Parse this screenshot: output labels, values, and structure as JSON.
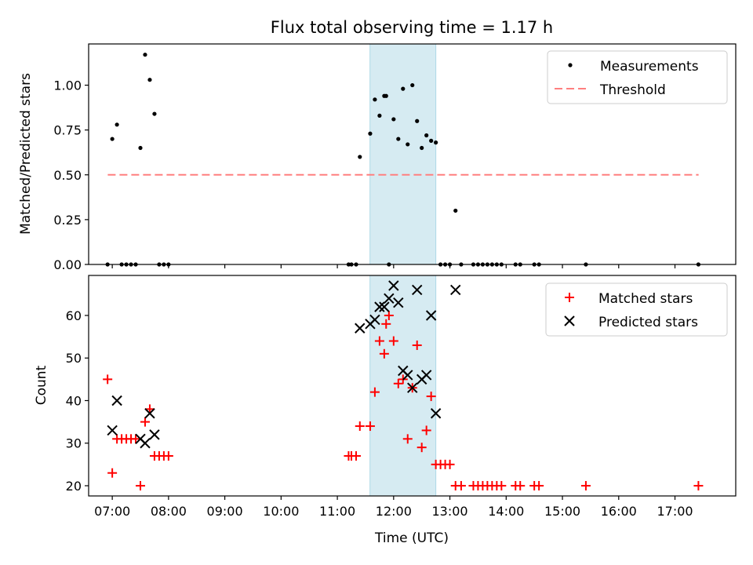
{
  "chart_data": [
    {
      "type": "scatter",
      "title": "Flux total observing time = 1.17 h",
      "xlabel": "",
      "ylabel": "Matched/Predicted stars",
      "ylim": [
        0,
        1.23
      ],
      "xlim_hours": [
        6.58,
        18.08
      ],
      "yticks": [
        "0.00",
        "0.25",
        "0.50",
        "0.75",
        "1.00"
      ],
      "highlight_span_hours": [
        11.58,
        12.75
      ],
      "highlight_color": "#add8e6",
      "legend_position": "upper right",
      "threshold": {
        "name": "Threshold",
        "y": 0.5,
        "x_from": 6.92,
        "x_to": 17.42,
        "color": "#ff7f7f"
      },
      "series": [
        {
          "name": "Measurements",
          "color": "#000000",
          "marker": "dot",
          "x": [
            "06:55",
            "07:00",
            "07:05",
            "07:10",
            "07:15",
            "07:20",
            "07:25",
            "07:30",
            "07:35",
            "07:40",
            "07:45",
            "07:50",
            "07:55",
            "08:00",
            "11:12",
            "11:15",
            "11:20",
            "11:24",
            "11:35",
            "11:40",
            "11:45",
            "11:50",
            "11:52",
            "11:55",
            "12:00",
            "12:05",
            "12:10",
            "12:15",
            "12:20",
            "12:25",
            "12:30",
            "12:35",
            "12:40",
            "12:45",
            "12:50",
            "12:55",
            "13:00",
            "13:06",
            "13:12",
            "13:25",
            "13:30",
            "13:35",
            "13:40",
            "13:45",
            "13:50",
            "13:55",
            "14:10",
            "14:15",
            "14:30",
            "14:35",
            "15:25",
            "17:25"
          ],
          "y": [
            0,
            0.7,
            0.78,
            0,
            0,
            0,
            0,
            0.65,
            1.17,
            1.03,
            0.84,
            0,
            0,
            0,
            0,
            0,
            0,
            0.6,
            0.73,
            0.92,
            0.83,
            0.94,
            0.94,
            0,
            0.81,
            0.7,
            0.98,
            0.67,
            1.0,
            0.8,
            0.65,
            0.72,
            0.69,
            0.68,
            0,
            0,
            0,
            0.3,
            0,
            0,
            0,
            0,
            0,
            0,
            0,
            0,
            0,
            0,
            0,
            0,
            0,
            0
          ]
        }
      ]
    },
    {
      "type": "scatter",
      "xlabel": "Time (UTC)",
      "ylabel": "Count",
      "ylim": [
        17.6,
        69.4
      ],
      "xlim_hours": [
        6.58,
        18.08
      ],
      "yticks": [
        "20",
        "30",
        "40",
        "50",
        "60"
      ],
      "xticks": [
        "07:00",
        "08:00",
        "09:00",
        "10:00",
        "11:00",
        "12:00",
        "13:00",
        "14:00",
        "15:00",
        "16:00",
        "17:00"
      ],
      "highlight_span_hours": [
        11.58,
        12.75
      ],
      "highlight_color": "#add8e6",
      "legend_position": "upper right",
      "series": [
        {
          "name": "Matched stars",
          "color": "#ff0000",
          "marker": "plus",
          "x": [
            "06:55",
            "07:00",
            "07:05",
            "07:10",
            "07:15",
            "07:20",
            "07:25",
            "07:30",
            "07:35",
            "07:40",
            "07:45",
            "07:50",
            "07:55",
            "08:00",
            "11:12",
            "11:15",
            "11:20",
            "11:24",
            "11:35",
            "11:40",
            "11:45",
            "11:50",
            "11:52",
            "11:55",
            "12:00",
            "12:05",
            "12:10",
            "12:15",
            "12:20",
            "12:25",
            "12:30",
            "12:35",
            "12:40",
            "12:45",
            "12:50",
            "12:55",
            "13:00",
            "13:06",
            "13:12",
            "13:25",
            "13:30",
            "13:35",
            "13:40",
            "13:45",
            "13:50",
            "13:55",
            "14:10",
            "14:15",
            "14:30",
            "14:35",
            "15:25",
            "17:25"
          ],
          "y": [
            45,
            23,
            31,
            31,
            31,
            31,
            31,
            20,
            35,
            38,
            27,
            27,
            27,
            27,
            27,
            27,
            27,
            34,
            34,
            42,
            54,
            51,
            58,
            60,
            54,
            44,
            45,
            31,
            43,
            53,
            29,
            33,
            41,
            25,
            25,
            25,
            25,
            20,
            20,
            20,
            20,
            20,
            20,
            20,
            20,
            20,
            20,
            20,
            20,
            20,
            20,
            20
          ]
        },
        {
          "name": "Predicted stars",
          "color": "#000000",
          "marker": "x",
          "x": [
            "07:00",
            "07:05",
            "07:30",
            "07:35",
            "07:40",
            "07:45",
            "11:24",
            "11:35",
            "11:40",
            "11:45",
            "11:50",
            "11:55",
            "12:00",
            "12:05",
            "12:10",
            "12:15",
            "12:20",
            "12:25",
            "12:30",
            "12:35",
            "12:40",
            "12:45",
            "13:06"
          ],
          "y": [
            33,
            40,
            31,
            30,
            37,
            32,
            57,
            58,
            59,
            62,
            62,
            64,
            67,
            63,
            47,
            46,
            43,
            66,
            45,
            46,
            60,
            37,
            66
          ]
        }
      ]
    }
  ]
}
